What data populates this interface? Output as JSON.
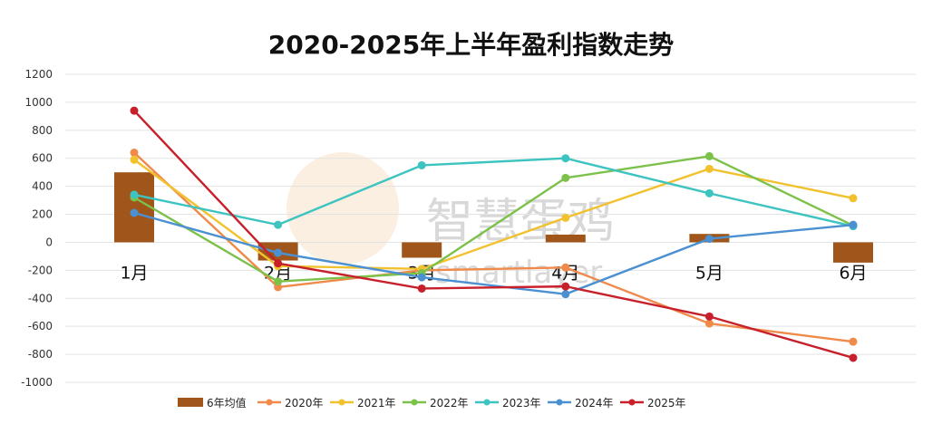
{
  "chart_data": {
    "type": "bar+line",
    "title": "2020-2025年上半年盈利指数走势",
    "categories": [
      "1月",
      "2月",
      "3月",
      "4月",
      "5月",
      "6月"
    ],
    "ylim": [
      -1000,
      1200
    ],
    "yticks": [
      -1000,
      -800,
      -600,
      -400,
      -200,
      0,
      200,
      400,
      600,
      800,
      1000,
      1200
    ],
    "grid": true,
    "legend_position": "bottom",
    "bar_series": {
      "name": "6年均值",
      "color": "#a0561a",
      "values": [
        500,
        -130,
        -110,
        55,
        60,
        -145
      ]
    },
    "series": [
      {
        "name": "2020年",
        "color": "#f08a4b",
        "values": [
          640,
          -320,
          -200,
          -180,
          -580,
          -710
        ]
      },
      {
        "name": "2021年",
        "color": "#f2c12e",
        "values": [
          590,
          -170,
          -190,
          175,
          525,
          315
        ]
      },
      {
        "name": "2022年",
        "color": "#7cc14a",
        "values": [
          320,
          -280,
          -220,
          460,
          615,
          120
        ]
      },
      {
        "name": "2023年",
        "color": "#3dc4c0",
        "values": [
          340,
          125,
          550,
          600,
          350,
          115
        ]
      },
      {
        "name": "2024年",
        "color": "#4a90d2",
        "values": [
          210,
          -75,
          -250,
          -370,
          25,
          125
        ]
      },
      {
        "name": "2025年",
        "color": "#c8202b",
        "values": [
          940,
          -150,
          -330,
          -315,
          -530,
          -825
        ]
      }
    ]
  },
  "watermark": {
    "text": "智慧蛋鸡",
    "subtext": "smartlayer"
  }
}
